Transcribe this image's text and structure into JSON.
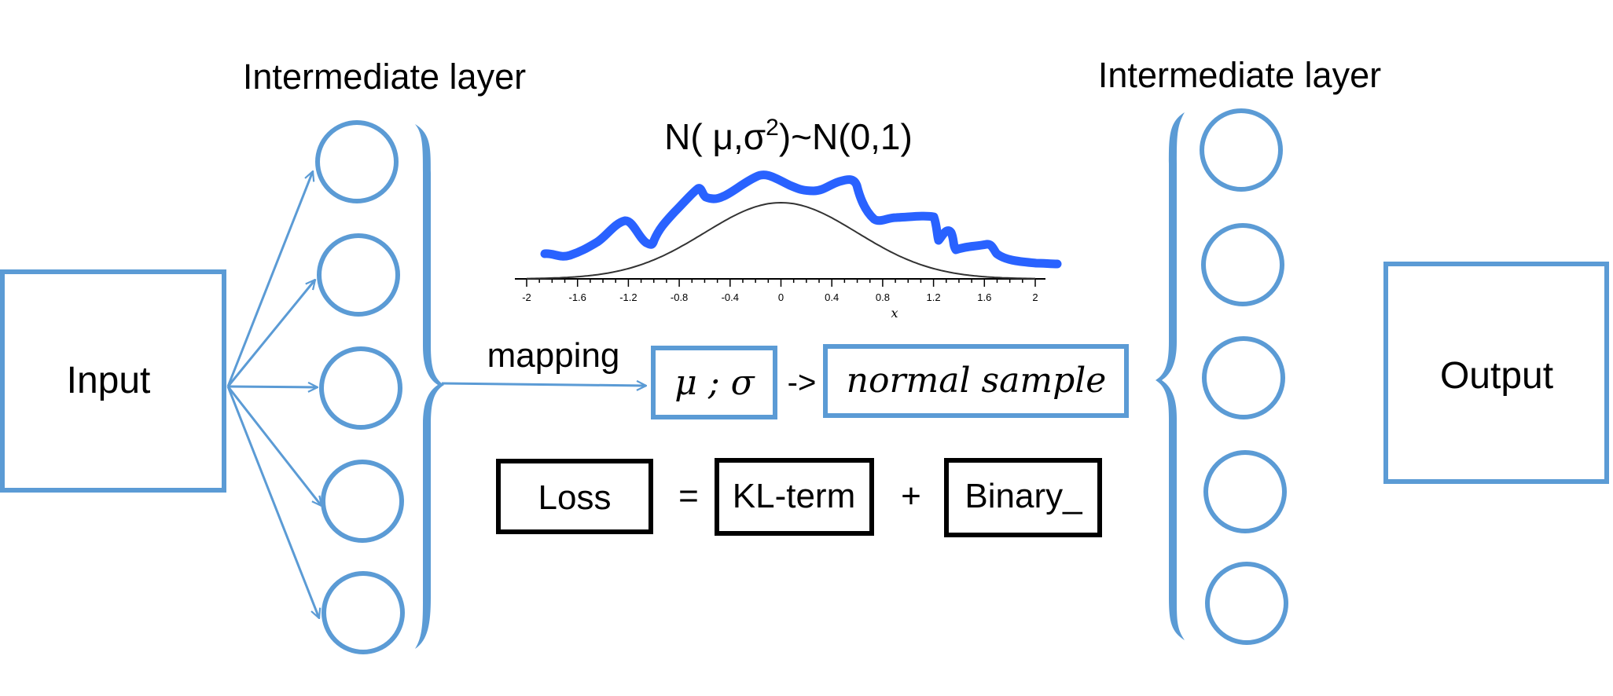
{
  "colors": {
    "blue": "#5B9BD5",
    "curve_blue": "#2962FF",
    "black": "#000000"
  },
  "labels": {
    "input": "Input",
    "output": "Output",
    "intermediate_left": "Intermediate layer",
    "intermediate_right": "Intermediate layer",
    "mapping": "mapping",
    "mu_sigma": "μ ; σ",
    "arrow": "->",
    "normal_sample": "normal sample",
    "dist_prefix": "N( μ,σ",
    "dist_sup": "2",
    "dist_suffix": ")~N(0,1)"
  },
  "loss": {
    "loss": "Loss",
    "equals": "=",
    "kl": "KL-term",
    "plus": "+",
    "binary": "Binary_"
  },
  "plot": {
    "x_label": "x",
    "x_ticks": [
      "-2",
      "-1.6",
      "-1.2",
      "-0.8",
      "-0.4",
      "0",
      "0.4",
      "0.8",
      "1.2",
      "1.6",
      "2"
    ],
    "x_range": [
      -2,
      2
    ]
  },
  "icons": {
    "node": "circle-node-icon",
    "brace": "curly-brace-icon",
    "arrow": "arrow-icon"
  }
}
